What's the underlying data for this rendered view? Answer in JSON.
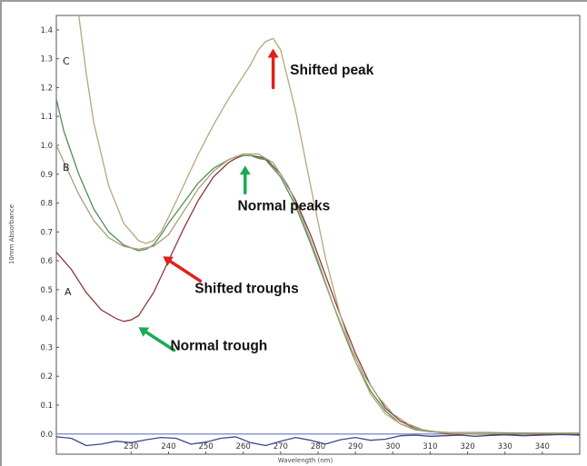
{
  "chart_data": {
    "type": "line",
    "title": "",
    "xlabel": "Wavelength (nm)",
    "ylabel": "10mm Absorbance",
    "xlim": [
      210,
      350
    ],
    "ylim": [
      -0.07,
      1.45
    ],
    "x_ticks": [
      230,
      240,
      250,
      260,
      270,
      280,
      290,
      300,
      310,
      320,
      330,
      340
    ],
    "y_ticks": [
      "0.0",
      "0.1",
      "0.2",
      "0.3",
      "0.4",
      "0.5",
      "0.6",
      "0.7",
      "0.8",
      "0.9",
      "1.0",
      "1.1",
      "1.2",
      "1.3",
      "1.4"
    ],
    "grid": false,
    "colors": {
      "series_a": "#8a3a3a",
      "series_b": "#4f8f5a",
      "series_c": "#b8a67a",
      "series_d": "#a9a079",
      "baseline": "#3a4a8a",
      "zero_line": "#8a9ad0",
      "arrow_red": "#e0201a",
      "arrow_green": "#1aaa55",
      "frame": "#555555"
    },
    "series": [
      {
        "label": "A",
        "x": [
          210,
          214,
          218,
          222,
          226,
          228,
          230,
          232,
          234,
          236,
          240,
          244,
          248,
          252,
          256,
          258,
          260,
          262,
          264,
          266,
          270,
          274,
          278,
          282,
          286,
          290,
          294,
          298,
          302,
          306,
          310,
          315,
          320,
          325,
          330,
          340,
          350
        ],
        "y": [
          0.63,
          0.57,
          0.49,
          0.43,
          0.4,
          0.39,
          0.395,
          0.41,
          0.45,
          0.49,
          0.6,
          0.71,
          0.81,
          0.89,
          0.94,
          0.955,
          0.965,
          0.965,
          0.96,
          0.955,
          0.9,
          0.81,
          0.69,
          0.55,
          0.41,
          0.28,
          0.17,
          0.09,
          0.045,
          0.02,
          0.01,
          0.0,
          0.0,
          0.0,
          0.0,
          0.0,
          0.0
        ]
      },
      {
        "label": "B",
        "x": [
          210,
          212,
          216,
          220,
          224,
          228,
          232,
          234,
          236,
          238,
          240,
          244,
          248,
          252,
          256,
          258,
          260,
          262,
          264,
          266,
          270,
          274,
          278,
          282,
          286,
          290,
          294,
          298,
          302,
          306,
          310,
          315,
          320,
          325,
          330,
          340,
          350
        ],
        "y": [
          1.16,
          1.05,
          0.9,
          0.78,
          0.7,
          0.655,
          0.635,
          0.64,
          0.655,
          0.69,
          0.73,
          0.8,
          0.87,
          0.92,
          0.95,
          0.96,
          0.965,
          0.965,
          0.955,
          0.95,
          0.89,
          0.79,
          0.66,
          0.52,
          0.38,
          0.25,
          0.15,
          0.08,
          0.035,
          0.015,
          0.008,
          0.005,
          0.005,
          0.005,
          0.004,
          0.003,
          0.003
        ]
      },
      {
        "label": "C",
        "x": [
          216,
          218,
          220,
          224,
          228,
          232,
          234,
          236,
          238,
          240,
          244,
          248,
          252,
          256,
          260,
          262,
          264,
          266,
          268,
          270,
          274,
          278,
          282,
          286,
          290,
          294,
          298,
          302,
          306,
          310,
          315,
          320,
          325,
          330,
          340,
          350
        ],
        "y": [
          1.45,
          1.25,
          1.08,
          0.86,
          0.73,
          0.67,
          0.66,
          0.67,
          0.7,
          0.75,
          0.86,
          0.97,
          1.07,
          1.16,
          1.24,
          1.28,
          1.33,
          1.36,
          1.37,
          1.33,
          1.12,
          0.86,
          0.61,
          0.41,
          0.25,
          0.14,
          0.07,
          0.035,
          0.018,
          0.01,
          0.005,
          0.004,
          0.003,
          0.002,
          0.002,
          0.002
        ]
      },
      {
        "label": "",
        "x": [
          210,
          216,
          220,
          224,
          228,
          232,
          236,
          240,
          244,
          248,
          252,
          256,
          260,
          264,
          268,
          272,
          276,
          280,
          284,
          288,
          292,
          296,
          300,
          304,
          308,
          312,
          316,
          320,
          330,
          340,
          350
        ],
        "y": [
          1.0,
          0.83,
          0.74,
          0.68,
          0.65,
          0.64,
          0.65,
          0.69,
          0.77,
          0.85,
          0.91,
          0.95,
          0.97,
          0.97,
          0.94,
          0.86,
          0.74,
          0.6,
          0.45,
          0.32,
          0.21,
          0.13,
          0.07,
          0.035,
          0.015,
          0.006,
          0.002,
          0.0,
          0.002,
          0.003,
          0.003
        ]
      },
      {
        "label": "",
        "x": [
          210,
          214,
          218,
          222,
          226,
          230,
          234,
          238,
          242,
          246,
          250,
          254,
          258,
          262,
          266,
          270,
          274,
          278,
          282,
          286,
          290,
          294,
          298,
          302,
          306,
          310,
          314,
          318,
          322,
          326,
          330,
          335,
          340,
          345,
          350
        ],
        "y": [
          -0.01,
          -0.015,
          -0.04,
          -0.035,
          -0.025,
          -0.03,
          -0.02,
          -0.012,
          -0.015,
          -0.035,
          -0.028,
          -0.015,
          -0.01,
          -0.03,
          -0.04,
          -0.025,
          -0.012,
          -0.022,
          -0.035,
          -0.02,
          -0.012,
          -0.022,
          -0.018,
          -0.006,
          -0.004,
          -0.008,
          -0.006,
          -0.004,
          -0.008,
          -0.005,
          -0.003,
          -0.006,
          -0.004,
          -0.002,
          -0.004
        ]
      }
    ],
    "annotations": [
      {
        "text": "Shifted peak",
        "x": 272.5,
        "y": 1.245,
        "arrow": "red",
        "arrow_from": [
          268,
          1.2
        ],
        "arrow_to": [
          268,
          1.335
        ]
      },
      {
        "text": "Normal peaks",
        "x": 258.5,
        "y": 0.775,
        "arrow": "green",
        "arrow_from": [
          260.5,
          0.835
        ],
        "arrow_to": [
          260.5,
          0.93
        ]
      },
      {
        "text": "Shifted troughs",
        "x": 247,
        "y": 0.488,
        "arrow": "red",
        "arrow_from": [
          248.5,
          0.53
        ],
        "arrow_to": [
          238.5,
          0.615
        ]
      },
      {
        "text": "Normal trough",
        "x": 240.5,
        "y": 0.29,
        "arrow": "green",
        "arrow_from": [
          241.5,
          0.29
        ],
        "arrow_to": [
          232,
          0.37
        ]
      }
    ]
  }
}
